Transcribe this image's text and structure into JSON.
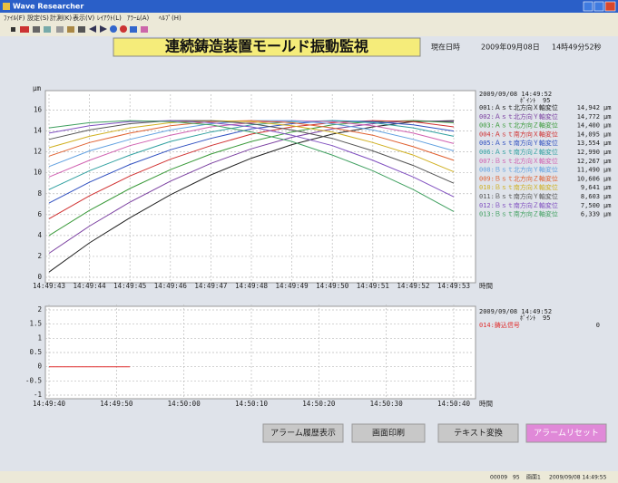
{
  "window": {
    "title": "Wave Researcher",
    "menu": [
      "ﾌｧｲﾙ(F)",
      "設定(S)",
      "計測(K)",
      "表示(V)",
      "ﾚｲｱｳﾄ(L)",
      "ｱﾗｰﾑ(A)",
      "ﾍﾙﾌﾟ(H)"
    ]
  },
  "header": {
    "banner": "連続鋳造装置モールド振動監視",
    "datetime_label": "現在日時",
    "date": "2009年09月08日",
    "time": "14時49分52秒"
  },
  "chart_data": [
    {
      "type": "line",
      "y_label": "μm",
      "x_label": "時間",
      "unit": "μm",
      "x": [
        "14:49:43",
        "14:49:44",
        "14:49:45",
        "14:49:46",
        "14:49:47",
        "14:49:48",
        "14:49:49",
        "14:49:50",
        "14:49:51",
        "14:49:52",
        "14:49:53"
      ],
      "ylim": [
        0,
        17
      ],
      "yticks": [
        0,
        2,
        4,
        6,
        8,
        10,
        12,
        14,
        16
      ],
      "grid": true,
      "legend": {
        "timestamp": "2009/09/08 14:49:52",
        "point_label": "ﾎﾟｲﾝﾄ",
        "point": 95
      },
      "series": [
        {
          "name": "001:Ａｓｔ北方向Ｘ軸変位",
          "color": "#222222",
          "values": [
            0.5,
            3.3,
            5.7,
            7.9,
            9.8,
            11.4,
            12.7,
            13.7,
            14.4,
            14.9,
            15.0
          ],
          "latest": 14.942,
          "latest_label": "14,942"
        },
        {
          "name": "002:Ａｓｔ北方向Ｙ軸変位",
          "color": "#7a3fa0",
          "values": [
            2.3,
            4.9,
            7.2,
            9.2,
            10.9,
            12.3,
            13.4,
            14.2,
            14.7,
            15.0,
            14.9
          ],
          "latest": 14.772,
          "latest_label": "14,772"
        },
        {
          "name": "003:Ａｓｔ北方向Ｚ軸変位",
          "color": "#3a9a3a",
          "values": [
            4.0,
            6.4,
            8.5,
            10.3,
            11.8,
            13.0,
            13.9,
            14.6,
            14.9,
            15.0,
            14.8
          ],
          "latest": 14.4,
          "latest_label": "14,400"
        },
        {
          "name": "004:Ａｓｔ南方向Ｘ軸変位",
          "color": "#d03030",
          "values": [
            5.6,
            7.8,
            9.7,
            11.3,
            12.6,
            13.7,
            14.4,
            14.8,
            15.0,
            14.9,
            14.4
          ],
          "latest": 14.095,
          "latest_label": "14,095"
        },
        {
          "name": "005:Ａｓｔ南方向Ｙ軸変位",
          "color": "#3050c0",
          "values": [
            7.1,
            9.1,
            10.8,
            12.2,
            13.3,
            14.2,
            14.7,
            15.0,
            14.9,
            14.6,
            14.0
          ],
          "latest": 13.554,
          "latest_label": "13,554"
        },
        {
          "name": "006:Ａｓｔ南方向Ｚ軸変位",
          "color": "#30a0a0",
          "values": [
            8.4,
            10.2,
            11.7,
            13.0,
            13.9,
            14.6,
            14.9,
            15.0,
            14.8,
            14.3,
            13.5
          ],
          "latest": 12.99,
          "latest_label": "12,990"
        },
        {
          "name": "007:Ｂｓｔ北方向Ｘ軸変位",
          "color": "#d060b0",
          "values": [
            9.6,
            11.2,
            12.6,
            13.6,
            14.4,
            14.8,
            15.0,
            14.9,
            14.5,
            13.8,
            12.8
          ],
          "latest": 12.267,
          "latest_label": "12,267"
        },
        {
          "name": "008:Ｂｓｔ北方向Ｙ軸変位",
          "color": "#60a0e0",
          "values": [
            10.6,
            12.1,
            13.2,
            14.1,
            14.7,
            15.0,
            15.0,
            14.7,
            14.1,
            13.2,
            12.1
          ],
          "latest": 11.49,
          "latest_label": "11,490"
        },
        {
          "name": "009:Ｂｓｔ北方向Ｚ軸変位",
          "color": "#e06030",
          "values": [
            11.6,
            12.9,
            13.8,
            14.5,
            14.9,
            15.0,
            14.8,
            14.3,
            13.6,
            12.5,
            11.2
          ],
          "latest": 10.606,
          "latest_label": "10,606"
        },
        {
          "name": "010:Ｂｓｔ南方向Ｘ軸変位",
          "color": "#d0b020",
          "values": [
            12.4,
            13.5,
            14.3,
            14.8,
            15.0,
            14.9,
            14.5,
            13.9,
            12.9,
            11.7,
            10.1
          ],
          "latest": 9.641,
          "latest_label": "9,641"
        },
        {
          "name": "011:Ｂｓｔ南方向Ｙ軸変位",
          "color": "#555555",
          "values": [
            13.2,
            14.1,
            14.7,
            15.0,
            15.0,
            14.7,
            14.1,
            13.3,
            12.1,
            10.7,
            9.0
          ],
          "latest": 8.603,
          "latest_label": "8,603"
        },
        {
          "name": "012:Ｂｓｔ南方向Ｚ軸変位",
          "color": "#8050c0",
          "values": [
            13.8,
            14.5,
            14.9,
            15.0,
            14.8,
            14.4,
            13.6,
            12.6,
            11.2,
            9.6,
            7.7
          ],
          "latest": 7.5,
          "latest_label": "7,500"
        },
        {
          "name": "013:Ｂｓｔ南方向Ｚ軸変位",
          "color": "#40a060",
          "values": [
            14.3,
            14.8,
            15.0,
            14.9,
            14.6,
            13.9,
            13.0,
            11.7,
            10.2,
            8.4,
            6.3
          ],
          "latest": 6.339,
          "latest_label": "6,339"
        }
      ]
    },
    {
      "type": "line",
      "x_label": "時間",
      "unit": "",
      "xticks": [
        "14:49:40",
        "14:49:50",
        "14:50:00",
        "14:50:10",
        "14:50:20",
        "14:50:30",
        "14:50:40"
      ],
      "ylim": [
        -1,
        2
      ],
      "yticks": [
        -1,
        -0.5,
        0,
        0.5,
        1,
        1.5,
        2
      ],
      "grid": true,
      "legend": {
        "timestamp": "2009/09/08 14:49:52",
        "point_label": "ﾎﾟｲﾝﾄ",
        "point": 95
      },
      "series": [
        {
          "name": "014:鋳込信号",
          "color": "#e03030",
          "x": [
            "14:49:40",
            "14:49:52"
          ],
          "values": [
            0,
            0
          ],
          "latest": 0
        }
      ]
    }
  ],
  "buttons": [
    "アラーム履歴表示",
    "画面印刷",
    "テキスト変換",
    "アラームリセット"
  ],
  "status_bar": [
    "00009",
    "95",
    "画面1",
    "2009/09/08 14:49:55"
  ]
}
